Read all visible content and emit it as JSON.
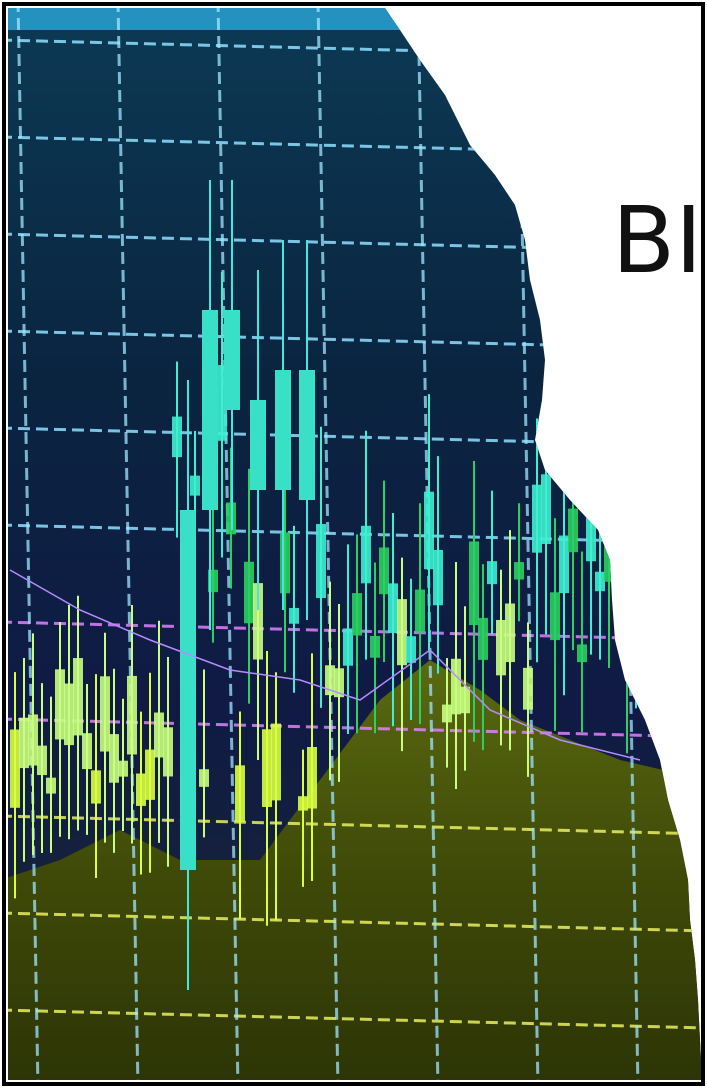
{
  "headline": "BI"
}
